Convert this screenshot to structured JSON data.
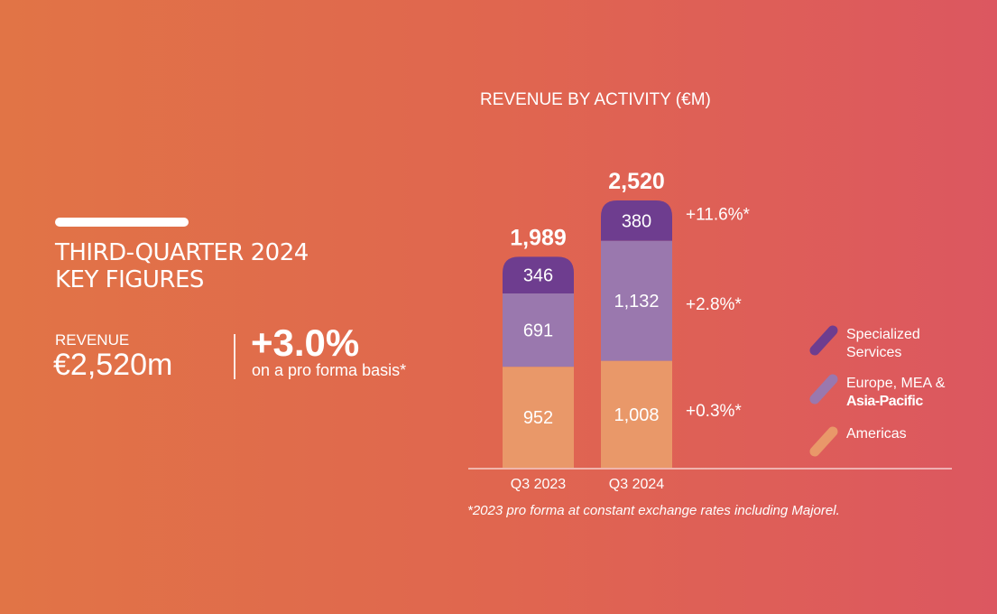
{
  "header": {
    "title_line1": "THIRD-QUARTER 2024",
    "title_line2": "KEY FIGURES"
  },
  "kpi": {
    "label": "REVENUE",
    "value": "€2,520m",
    "growth": "+3.0%",
    "growth_note": "on a pro forma basis*"
  },
  "footnote": "*2023 pro forma at constant exchange rates including Majorel.",
  "chart_data": {
    "type": "bar",
    "stacked": true,
    "title": "REVENUE BY ACTIVITY (€M)",
    "categories": [
      "Q3 2023",
      "Q3 2024"
    ],
    "totals": [
      "1,989",
      "2,520"
    ],
    "series": [
      {
        "name": "Americas",
        "values": [
          952,
          1008
        ],
        "labels": [
          "952",
          "1,008"
        ],
        "color": "#E99869",
        "growth": "+0.3%*"
      },
      {
        "name": "Europe, MEA & Asia-Pacific",
        "name_line1": "Europe, MEA &",
        "name_line2": "Asia-Pacific",
        "values": [
          691,
          1132
        ],
        "labels": [
          "691",
          "1,132"
        ],
        "color": "#9A78AE",
        "growth": "+2.8%*"
      },
      {
        "name": "Specialized Services",
        "name_line1": "Specialized",
        "name_line2": "Services",
        "values": [
          346,
          380
        ],
        "labels": [
          "346",
          "380"
        ],
        "color": "#6E3D8F",
        "growth": "+11.6%*"
      }
    ],
    "legend": "right",
    "grid": false
  }
}
